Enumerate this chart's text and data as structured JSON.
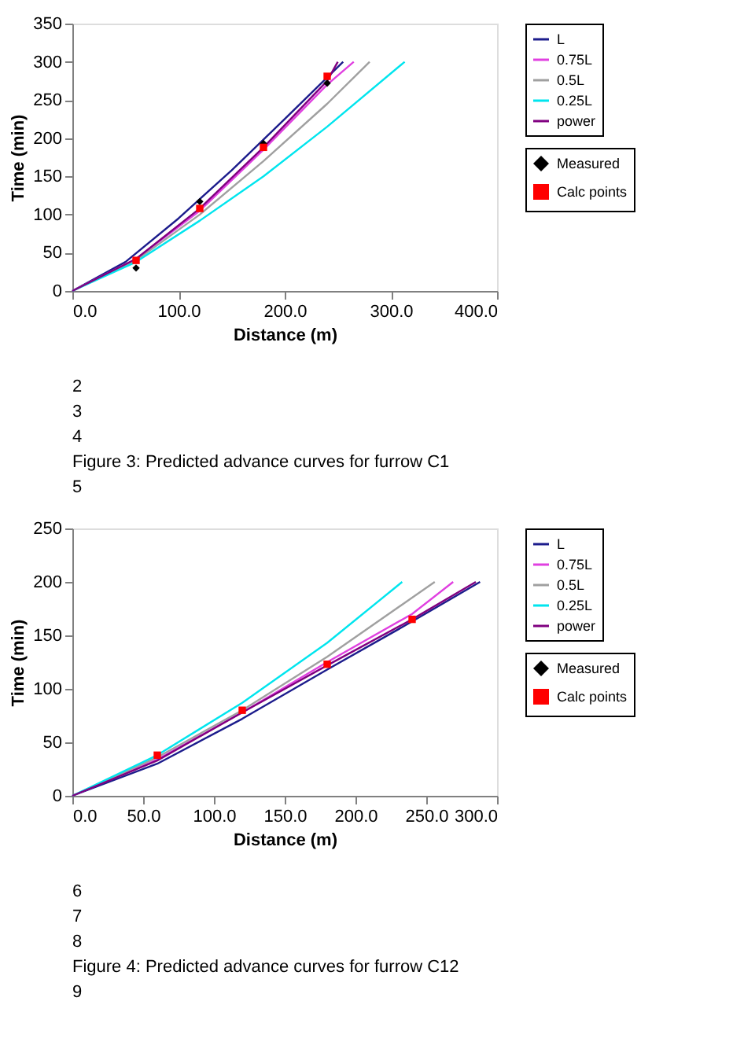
{
  "chart_data": [
    {
      "type": "line",
      "xlabel": "Distance (m)",
      "ylabel": "Time (min)",
      "xlim": [
        0,
        400
      ],
      "xticks": [
        {
          "value": 0,
          "label": "0.0"
        },
        {
          "value": 100,
          "label": "100.0"
        },
        {
          "value": 200,
          "label": "200.0"
        },
        {
          "value": 300,
          "label": "300.0"
        },
        {
          "value": 400,
          "label": "400.0"
        }
      ],
      "ylim": [
        0,
        350
      ],
      "yticks": [
        0,
        50,
        100,
        150,
        200,
        250,
        300,
        350
      ],
      "grid": false,
      "legend": "right",
      "marker": "none",
      "line_style": "solid",
      "series": [
        {
          "name": "L",
          "color": "#1c1c8c",
          "x": [
            0,
            50,
            100,
            150,
            200,
            255
          ],
          "values": [
            0,
            38,
            95,
            158,
            225,
            300
          ]
        },
        {
          "name": "0.75L",
          "color": "#e040e0",
          "x": [
            0,
            60,
            120,
            180,
            240,
            265
          ],
          "values": [
            0,
            42,
            105,
            185,
            270,
            300
          ]
        },
        {
          "name": "0.5L",
          "color": "#a0a0a0",
          "x": [
            0,
            60,
            120,
            180,
            240,
            280
          ],
          "values": [
            0,
            40,
            100,
            170,
            245,
            300
          ]
        },
        {
          "name": "0.25L",
          "color": "#00e5ee",
          "x": [
            0,
            60,
            120,
            180,
            240,
            313
          ],
          "values": [
            0,
            38,
            92,
            150,
            215,
            300
          ]
        },
        {
          "name": "power",
          "color": "#800080",
          "x": [
            0,
            60,
            120,
            180,
            240,
            250
          ],
          "values": [
            0,
            42,
            108,
            188,
            275,
            300
          ]
        },
        {
          "name": "Measured",
          "type": "scatter",
          "marker": "diamond",
          "color": "#000000",
          "x": [
            60,
            120,
            180,
            240
          ],
          "values": [
            30,
            117,
            193,
            272
          ]
        },
        {
          "name": "Calc points",
          "type": "scatter",
          "marker": "square",
          "color": "#ff0000",
          "x": [
            60,
            120,
            180,
            240
          ],
          "values": [
            40,
            108,
            188,
            281
          ]
        }
      ],
      "annotations": [
        "2",
        "3",
        "4",
        "Figure 3: Predicted advance curves for furrow C1",
        "5"
      ]
    },
    {
      "type": "line",
      "xlabel": "Distance (m)",
      "ylabel": "Time (min)",
      "xlim": [
        0,
        300
      ],
      "xticks": [
        {
          "value": 0,
          "label": "0.0"
        },
        {
          "value": 50,
          "label": "50.0"
        },
        {
          "value": 100,
          "label": "100.0"
        },
        {
          "value": 150,
          "label": "150.0"
        },
        {
          "value": 200,
          "label": "200.0"
        },
        {
          "value": 250,
          "label": "250.0"
        },
        {
          "value": 300,
          "label": "300.0"
        }
      ],
      "ylim": [
        0,
        250
      ],
      "yticks": [
        0,
        50,
        100,
        150,
        200,
        250
      ],
      "grid": false,
      "legend": "right",
      "marker": "none",
      "line_style": "solid",
      "series": [
        {
          "name": "L",
          "color": "#1c1c8c",
          "x": [
            0,
            60,
            120,
            180,
            240,
            288
          ],
          "values": [
            0,
            30,
            72,
            118,
            163,
            200
          ]
        },
        {
          "name": "0.75L",
          "color": "#e040e0",
          "x": [
            0,
            60,
            120,
            180,
            240,
            269
          ],
          "values": [
            0,
            34,
            78,
            125,
            170,
            200
          ]
        },
        {
          "name": "0.5L",
          "color": "#a0a0a0",
          "x": [
            0,
            60,
            120,
            180,
            256
          ],
          "values": [
            0,
            36,
            80,
            130,
            200
          ]
        },
        {
          "name": "0.25L",
          "color": "#00e5ee",
          "x": [
            0,
            60,
            120,
            180,
            233
          ],
          "values": [
            0,
            38,
            87,
            143,
            200
          ]
        },
        {
          "name": "power",
          "color": "#800080",
          "x": [
            0,
            60,
            120,
            180,
            240,
            285
          ],
          "values": [
            0,
            33,
            78,
            122,
            165,
            200
          ]
        },
        {
          "name": "Measured",
          "type": "scatter",
          "marker": "diamond",
          "color": "#000000"
        },
        {
          "name": "Calc points",
          "type": "scatter",
          "marker": "square",
          "color": "#ff0000",
          "x": [
            60,
            120,
            180,
            240
          ],
          "values": [
            38,
            80,
            123,
            165
          ]
        }
      ],
      "annotations": [
        "6",
        "7",
        "8",
        "Figure 4: Predicted advance curves for furrow C12",
        "9"
      ]
    }
  ]
}
